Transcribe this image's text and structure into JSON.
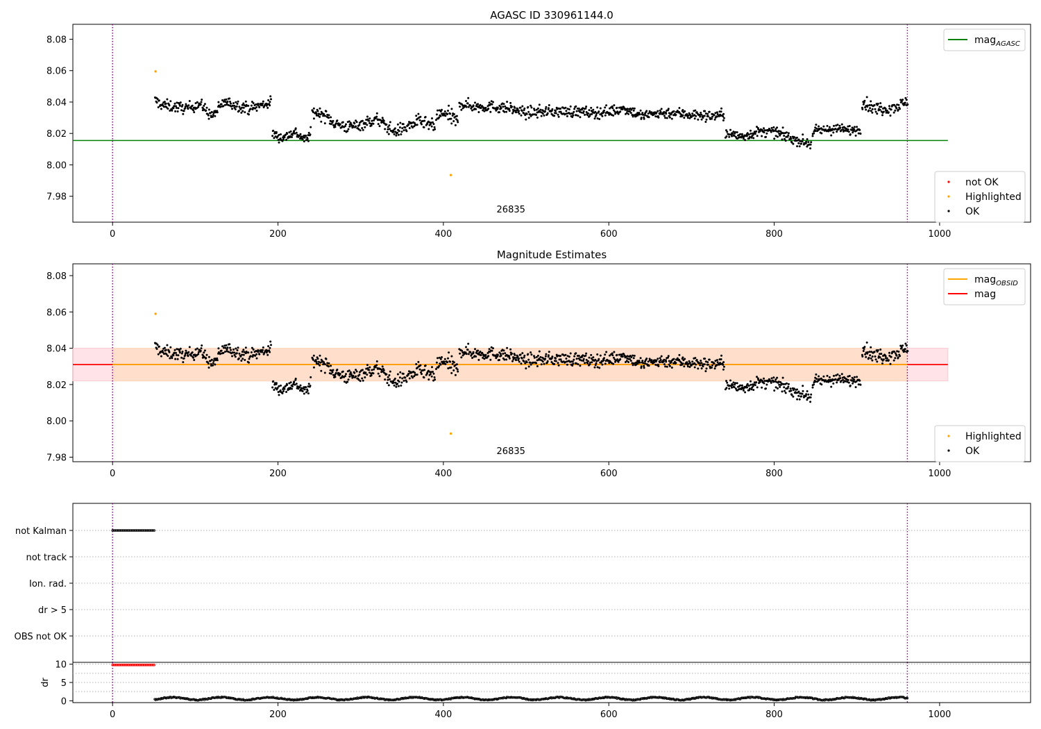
{
  "colors": {
    "ok": "#000000",
    "highlighted": "#ffa500",
    "not_ok": "#ff0000",
    "agasc_line": "#008000",
    "mag_line": "#ff0000",
    "obsid_line": "#ffa500",
    "band_outer": "#ffc0cb",
    "band_inner": "#ffdab9",
    "marker_line": "#800080",
    "grid": "#b0b0b0"
  },
  "chart_data": [
    {
      "id": "top",
      "type": "scatter",
      "title": "AGASC ID 330961144.0",
      "xlim": [
        -48,
        1110
      ],
      "ylim": [
        7.9635,
        8.0895
      ],
      "x_ticks": [
        0,
        200,
        400,
        600,
        800,
        1000
      ],
      "x_tick_labels": [
        "0",
        "200",
        "400",
        "600",
        "800",
        "1000"
      ],
      "y_ticks": [
        7.98,
        8.0,
        8.02,
        8.04,
        8.06,
        8.08
      ],
      "y_tick_labels": [
        "7.98",
        "8.00",
        "8.02",
        "8.04",
        "8.06",
        "8.08"
      ],
      "vlines": [
        0,
        961
      ],
      "obsid_label": {
        "text": "26835",
        "x": 480,
        "y": 7.968
      },
      "hlines": [
        {
          "name": "mag_AGASC",
          "y": 8.0155,
          "x": [
            -48,
            1010
          ],
          "color": "#008000"
        }
      ],
      "legend_lines": {
        "position": "upper right",
        "items": [
          {
            "label": "mag",
            "sub": "AGASC",
            "color": "#008000"
          }
        ]
      },
      "legend_points": {
        "position": "lower right",
        "items": [
          {
            "label": "not OK",
            "color": "#ff0000"
          },
          {
            "label": "Highlighted",
            "color": "#ffa500"
          },
          {
            "label": "OK",
            "color": "#000000"
          }
        ]
      },
      "highlighted_points": [
        [
          52,
          8.0595
        ],
        [
          409,
          7.9935
        ]
      ],
      "ok_segments": [
        {
          "x": [
            51,
            60,
            75,
            90,
            105,
            120,
            135,
            150,
            165,
            180,
            192
          ],
          "y": [
            8.041,
            8.038,
            8.037,
            8.036,
            8.039,
            8.031,
            8.04,
            8.038,
            8.036,
            8.038,
            8.04
          ],
          "spread": 0.0055
        },
        {
          "x": [
            193,
            205,
            220,
            232,
            240
          ],
          "y": [
            8.02,
            8.017,
            8.021,
            8.016,
            8.02
          ],
          "spread": 0.005
        },
        {
          "x": [
            241,
            255,
            270,
            285,
            300,
            320,
            340,
            355,
            370,
            390
          ],
          "y": [
            8.034,
            8.032,
            8.026,
            8.024,
            8.026,
            8.029,
            8.021,
            8.024,
            8.028,
            8.024
          ],
          "spread": 0.006
        },
        {
          "x": [
            391,
            400,
            410,
            418
          ],
          "y": [
            8.03,
            8.033,
            8.03,
            8.026
          ],
          "spread": 0.008
        },
        {
          "x": [
            419,
            440,
            460,
            480,
            500,
            520,
            540,
            560,
            580,
            600,
            620,
            640,
            660,
            680,
            700,
            720,
            740
          ],
          "y": [
            8.039,
            8.037,
            8.037,
            8.036,
            8.033,
            8.034,
            8.034,
            8.034,
            8.033,
            8.034,
            8.036,
            8.031,
            8.033,
            8.033,
            8.032,
            8.031,
            8.032
          ],
          "spread": 0.0055
        },
        {
          "x": [
            741,
            760,
            780,
            800,
            820,
            845
          ],
          "y": [
            8.02,
            8.018,
            8.021,
            8.021,
            8.017,
            8.013
          ],
          "spread": 0.005
        },
        {
          "x": [
            846,
            870,
            890,
            905
          ],
          "y": [
            8.021,
            8.023,
            8.022,
            8.023
          ],
          "spread": 0.005
        },
        {
          "x": [
            906,
            920,
            940,
            962
          ],
          "y": [
            8.04,
            8.036,
            8.036,
            8.04
          ],
          "spread": 0.006
        }
      ]
    },
    {
      "id": "middle",
      "type": "scatter",
      "title": "Magnitude Estimates",
      "xlim": [
        -48,
        1110
      ],
      "ylim": [
        7.9775,
        8.0865
      ],
      "x_ticks": [
        0,
        200,
        400,
        600,
        800,
        1000
      ],
      "x_tick_labels": [
        "0",
        "200",
        "400",
        "600",
        "800",
        "1000"
      ],
      "y_ticks": [
        7.98,
        8.0,
        8.02,
        8.04,
        8.06,
        8.08
      ],
      "y_tick_labels": [
        "7.98",
        "8.00",
        "8.02",
        "8.04",
        "8.06",
        "8.08"
      ],
      "vlines": [
        0,
        961
      ],
      "obsid_label": {
        "text": "26835",
        "x": 480,
        "y": 7.9805
      },
      "bands": [
        {
          "x": [
            -48,
            1010
          ],
          "y": [
            8.022,
            8.04
          ],
          "color": "#ffc0cb",
          "alpha": 0.45
        },
        {
          "x": [
            0,
            961
          ],
          "y": [
            8.022,
            8.04
          ],
          "color": "#ffdab9",
          "alpha": 0.6
        }
      ],
      "hlines": [
        {
          "name": "mag",
          "y": 8.031,
          "x": [
            -48,
            1010
          ],
          "color": "#ff0000"
        },
        {
          "name": "mag_OBSID",
          "y": 8.031,
          "x": [
            0,
            961
          ],
          "color": "#ffa500"
        }
      ],
      "legend_lines": {
        "position": "upper right",
        "items": [
          {
            "label": "mag",
            "sub": "OBSID",
            "color": "#ffa500"
          },
          {
            "label": "mag",
            "sub": "",
            "color": "#ff0000"
          }
        ]
      },
      "legend_points": {
        "position": "lower right",
        "items": [
          {
            "label": "Highlighted",
            "color": "#ffa500"
          },
          {
            "label": "OK",
            "color": "#000000"
          }
        ]
      },
      "highlighted_points": [
        [
          52,
          8.059
        ],
        [
          409,
          7.993
        ]
      ],
      "ok_segments": "same_as_top"
    },
    {
      "id": "flags",
      "type": "scatter",
      "xlim": [
        -48,
        1110
      ],
      "categories": [
        "not Kalman",
        "not track",
        "Ion. rad.",
        "dr > 5",
        "OBS not OK"
      ],
      "vlines": [
        0,
        961
      ],
      "series": [
        {
          "name": "not Kalman",
          "x_range": [
            0,
            51
          ],
          "step": 1.2
        }
      ]
    },
    {
      "id": "dr",
      "type": "scatter",
      "ylabel": "dr",
      "xlim": [
        -48,
        1110
      ],
      "ylim": [
        -0.5,
        10.5
      ],
      "y_ticks": [
        0,
        5,
        10
      ],
      "y_tick_labels": [
        "0",
        "5",
        "10"
      ],
      "x_ticks": [
        0,
        200,
        400,
        600,
        800,
        1000
      ],
      "x_tick_labels": [
        "0",
        "200",
        "400",
        "600",
        "800",
        "1000"
      ],
      "vlines": [
        0,
        961
      ],
      "series": [
        {
          "name": "dr not OK",
          "x_range": [
            0,
            51
          ],
          "y": 9.8,
          "color": "#ff0000"
        },
        {
          "name": "dr OK",
          "x_range": [
            51,
            961
          ],
          "y_mean": 0.6,
          "y_amp": 0.35,
          "color": "#000000"
        }
      ]
    }
  ]
}
